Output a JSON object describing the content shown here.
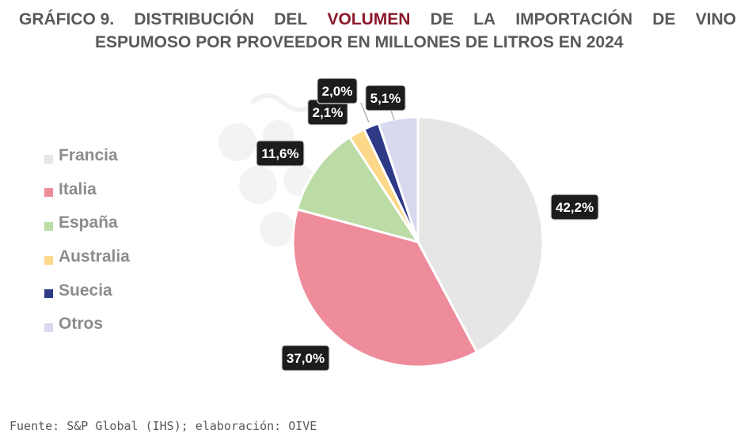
{
  "header": {
    "label": "GRÁFICO 9.",
    "w1": "DISTRIBUCIÓN",
    "w2": "DEL",
    "highlight": "VOLUMEN",
    "w3": "DE",
    "w4": "LA",
    "w5": "IMPORTACIÓN",
    "w6": "DE",
    "w7": "VINO",
    "line2": "ESPUMOSO POR PROVEEDOR EN MILLONES DE LITROS EN 2024",
    "highlight_color": "#8b1a2b"
  },
  "chart_data": {
    "type": "pie",
    "title": "Distribución del volumen de la importación de vino espumoso por proveedor en millones de litros en 2024",
    "categories": [
      "Francia",
      "Italia",
      "España",
      "Australia",
      "Suecia",
      "Otros"
    ],
    "values": [
      42.2,
      37.0,
      11.6,
      2.1,
      2.0,
      5.1
    ],
    "data_labels": [
      "42,2%",
      "37,0%",
      "11,6%",
      "2,1%",
      "2,0%",
      "5,1%"
    ],
    "colors": [
      "#e6e6e6",
      "#ee8c9c",
      "#bcdca5",
      "#fdd88a",
      "#2e3a86",
      "#d8d8ef"
    ],
    "start": "12 o'clock, clockwise",
    "legend_position": "left"
  },
  "footer": {
    "source": "Fuente: S&P Global (IHS); elaboración: OIVE"
  }
}
